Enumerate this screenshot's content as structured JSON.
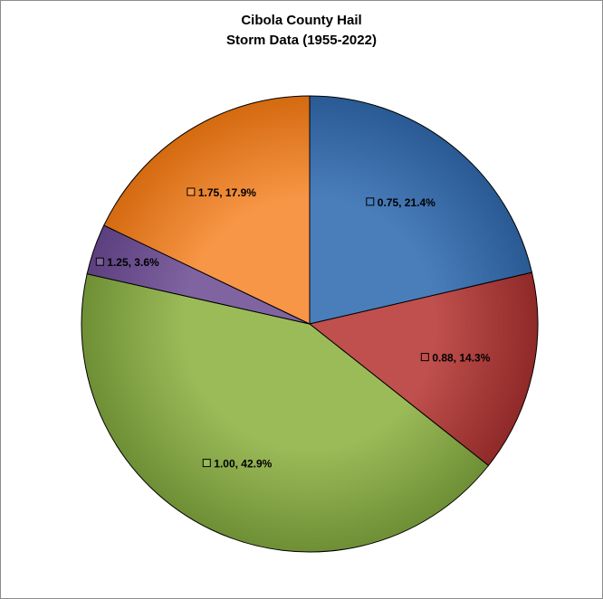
{
  "chart_data": {
    "type": "pie",
    "title": [
      "Cibola County Hail",
      "Storm Data (1955-2022)"
    ],
    "slices": [
      {
        "label": "0.75",
        "value": 21.4,
        "pct_label": "21.4%",
        "color": "#4a7ebb",
        "dark": "#2a5a94"
      },
      {
        "label": "0.88",
        "value": 14.3,
        "pct_label": "14.3%",
        "color": "#c0504d",
        "dark": "#8f2a28"
      },
      {
        "label": "1.00",
        "value": 42.9,
        "pct_label": "42.9%",
        "color": "#9bbb59",
        "dark": "#6f8f36"
      },
      {
        "label": "1.25",
        "value": 3.6,
        "pct_label": "3.6%",
        "color": "#8064a2",
        "dark": "#5b3f7e"
      },
      {
        "label": "1.75",
        "value": 17.9,
        "pct_label": "17.9%",
        "color": "#f79646",
        "dark": "#d46a10"
      }
    ],
    "start": "12 o'clock",
    "direction": "clockwise",
    "legend": "none"
  }
}
